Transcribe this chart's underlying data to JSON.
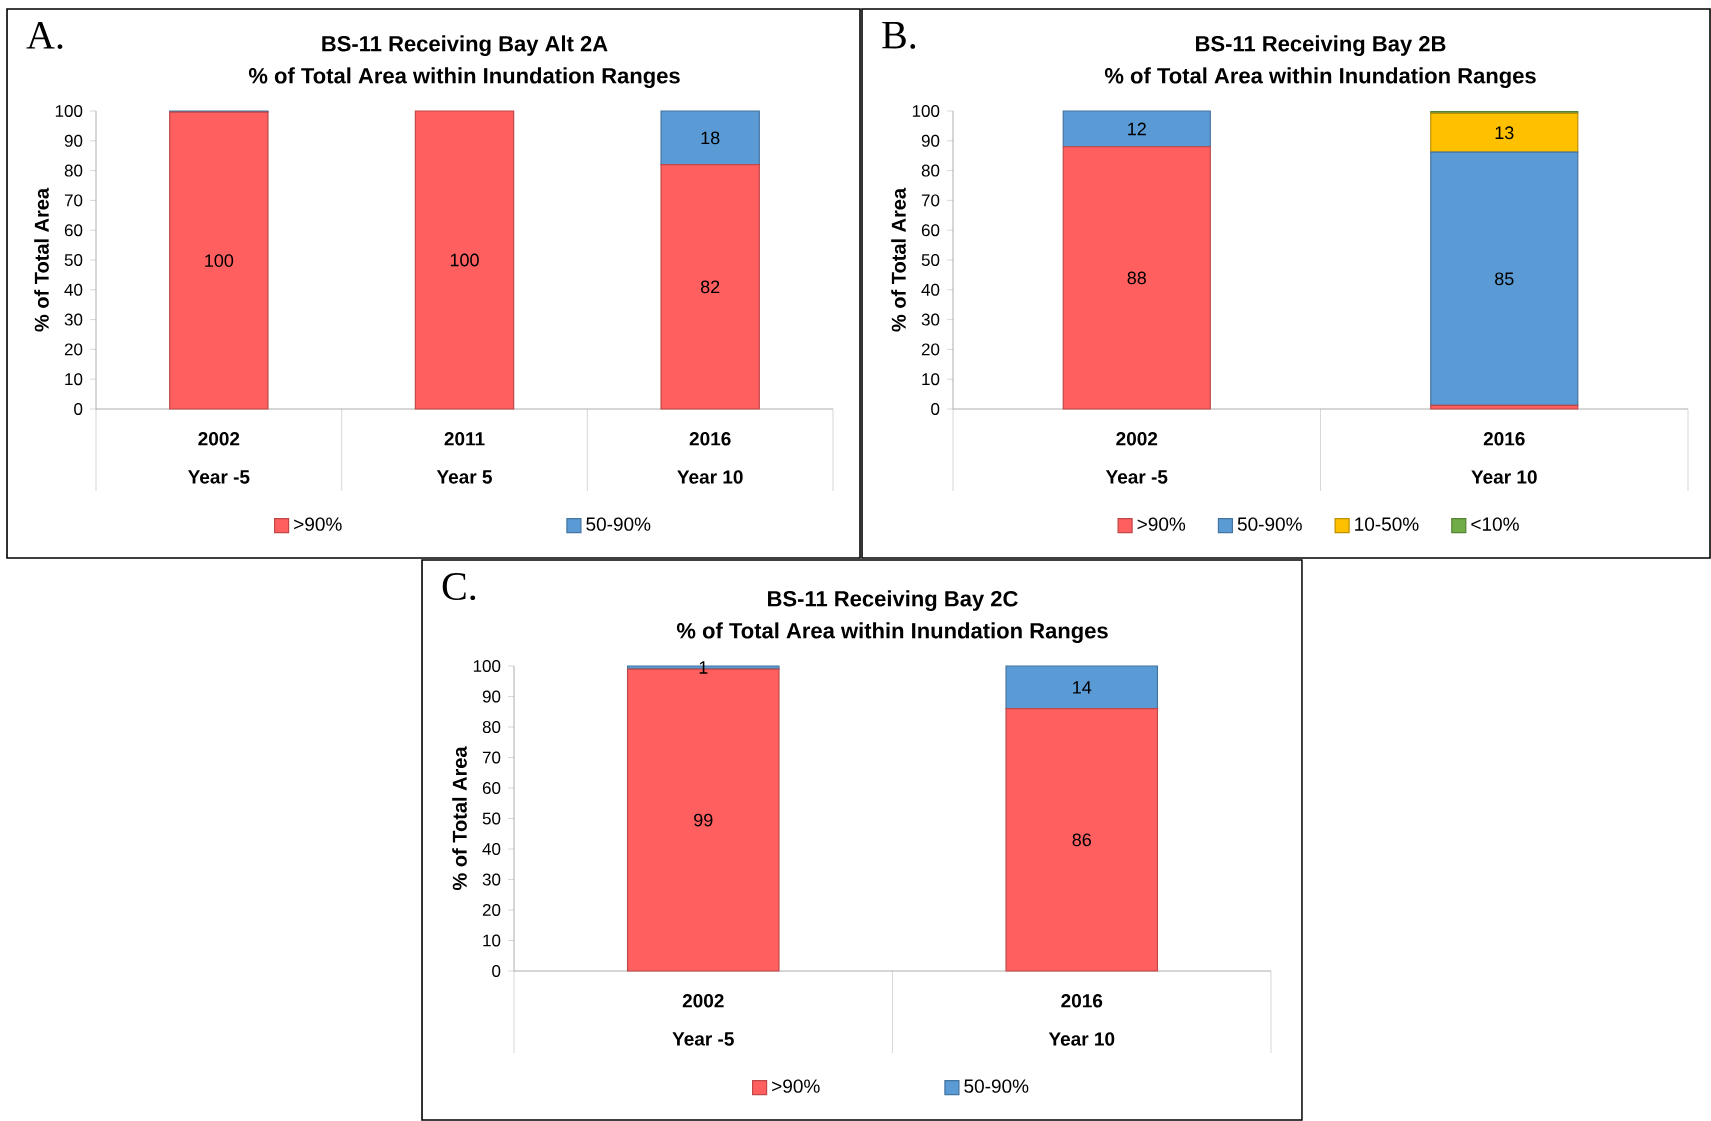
{
  "chart_data": [
    {
      "type": "bar",
      "stacked": true,
      "title": "BS-11 Receiving Bay Alt 2A",
      "subtitle": "% of Total Area within Inundation Ranges",
      "ylabel": "% of Total Area",
      "categories": [
        "2002",
        "2011",
        "2016"
      ],
      "annotations": [
        "A.",
        "Year -5",
        "Year 5",
        "Year 10"
      ],
      "series": [
        {
          "name": ">90%",
          "color": "#ff5f5f",
          "values": [
            99.6,
            100,
            82
          ],
          "value_labels": [
            "100",
            "100",
            "82"
          ]
        },
        {
          "name": "50-90%",
          "color": "#5b9bd5",
          "values": [
            0.4,
            0,
            18
          ],
          "value_labels": [
            null,
            null,
            "18"
          ]
        }
      ],
      "ylim": [
        0,
        100
      ],
      "yticks": [
        0,
        10,
        20,
        30,
        40,
        50,
        60,
        70,
        80,
        90,
        100
      ],
      "legend": "bottom",
      "grid": false
    },
    {
      "type": "bar",
      "stacked": true,
      "title": "BS-11 Receiving Bay 2B",
      "subtitle": "% of Total Area within Inundation Ranges",
      "ylabel": "% of Total Area",
      "categories": [
        "2002",
        "2016"
      ],
      "annotations": [
        "B.",
        "Year -5",
        "Year 10"
      ],
      "series": [
        {
          "name": ">90%",
          "color": "#ff5f5f",
          "values": [
            88,
            1.2
          ],
          "value_labels": [
            "88",
            null
          ]
        },
        {
          "name": "50-90%",
          "color": "#5b9bd5",
          "values": [
            12,
            85
          ],
          "value_labels": [
            "12",
            "85"
          ]
        },
        {
          "name": "10-50%",
          "color": "#ffc000",
          "values": [
            0,
            13
          ],
          "value_labels": [
            null,
            "13"
          ]
        },
        {
          "name": "<10%",
          "color": "#70ad47",
          "values": [
            0,
            0.6
          ],
          "value_labels": [
            null,
            null
          ]
        }
      ],
      "ylim": [
        0,
        100
      ],
      "yticks": [
        0,
        10,
        20,
        30,
        40,
        50,
        60,
        70,
        80,
        90,
        100
      ],
      "legend": "bottom",
      "grid": false
    },
    {
      "type": "bar",
      "stacked": true,
      "title": "BS-11 Receiving Bay 2C",
      "subtitle": "% of Total Area within Inundation Ranges",
      "ylabel": "% of Total Area",
      "categories": [
        "2002",
        "2016"
      ],
      "annotations": [
        "C.",
        "Year -5",
        "Year 10"
      ],
      "series": [
        {
          "name": ">90%",
          "color": "#ff5f5f",
          "values": [
            99,
            86
          ],
          "value_labels": [
            "99",
            "86"
          ]
        },
        {
          "name": "50-90%",
          "color": "#5b9bd5",
          "values": [
            1,
            14
          ],
          "value_labels": [
            "1",
            "14"
          ]
        }
      ],
      "ylim": [
        0,
        100
      ],
      "yticks": [
        0,
        10,
        20,
        30,
        40,
        50,
        60,
        70,
        80,
        90,
        100
      ],
      "legend": "bottom",
      "grid": false
    }
  ]
}
